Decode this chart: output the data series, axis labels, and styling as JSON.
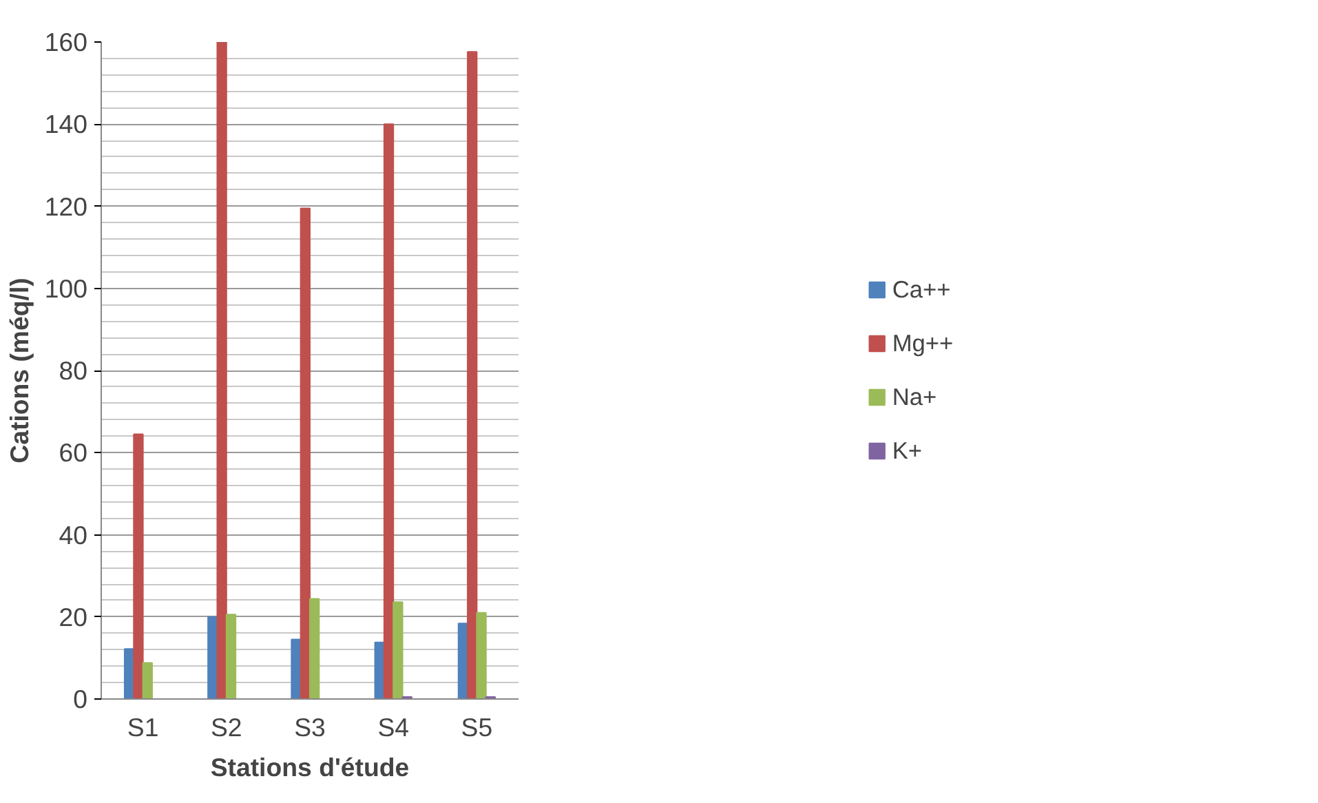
{
  "chart_data": {
    "type": "bar",
    "xlabel": "Stations d'étude",
    "ylabel": "Cations (méq/l)",
    "categories": [
      "S1",
      "S2",
      "S3",
      "S4",
      "S5"
    ],
    "series": [
      {
        "name": "Ca++",
        "color": "#4f81bd",
        "values": [
          12.2,
          20,
          14.5,
          13.8,
          18.4
        ]
      },
      {
        "name": "Mg++",
        "color": "#c0504d",
        "values": [
          64.5,
          160,
          119.5,
          140,
          157.6
        ]
      },
      {
        "name": "Na+",
        "color": "#9bbb59",
        "values": [
          8.8,
          20.6,
          24.4,
          23.6,
          21
        ]
      },
      {
        "name": "K+",
        "color": "#8064a2",
        "values": [
          0,
          0,
          0,
          0.5,
          0.5
        ]
      }
    ],
    "ylim": [
      0,
      160
    ],
    "yticks": [
      0,
      20,
      40,
      60,
      80,
      100,
      120,
      140,
      160
    ],
    "grid": "y",
    "legend": "right"
  }
}
